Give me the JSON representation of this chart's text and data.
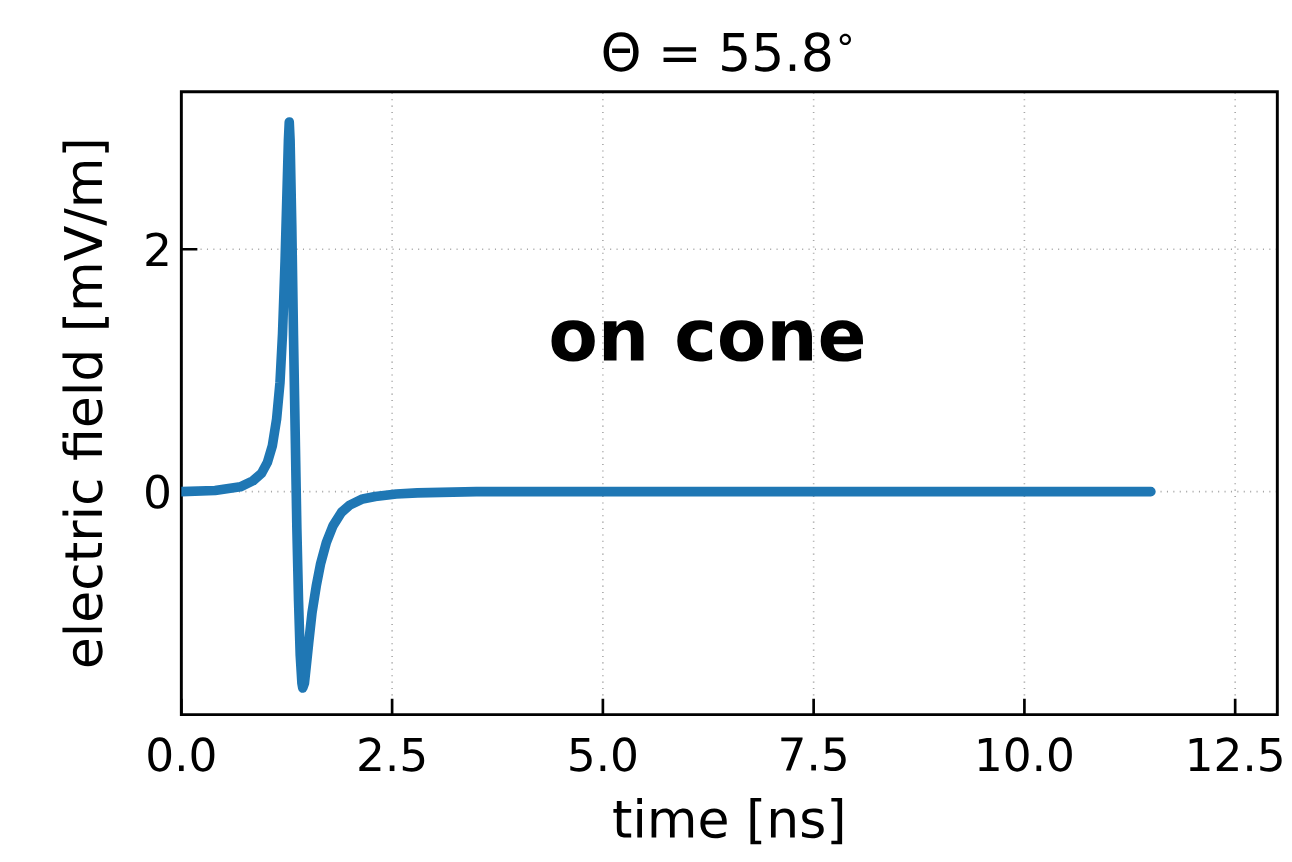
{
  "chart_data": {
    "type": "line",
    "title": "Θ = 55.8$^{∘}$",
    "xlabel": "time [ns]",
    "ylabel": "electric field [mV/m]",
    "annotations": [
      "on cone"
    ],
    "series": [
      {
        "color": "#1f77b4",
        "x": [
          0,
          0.4,
          0.7,
          0.85,
          0.95,
          1.02,
          1.08,
          1.13,
          1.17,
          1.2,
          1.23,
          1.25,
          1.27,
          1.28,
          1.29,
          1.31,
          1.33,
          1.35,
          1.37,
          1.39,
          1.41,
          1.43,
          1.44,
          1.46,
          1.48,
          1.51,
          1.55,
          1.6,
          1.65,
          1.72,
          1.8,
          1.9,
          2.0,
          2.15,
          2.3,
          2.55,
          2.8,
          3.5,
          11.5
        ],
        "values": [
          0,
          0.01,
          0.04,
          0.09,
          0.15,
          0.24,
          0.38,
          0.6,
          0.9,
          1.3,
          1.9,
          2.4,
          2.9,
          3.05,
          2.9,
          2.2,
          1.3,
          0.5,
          -0.3,
          -0.9,
          -1.35,
          -1.58,
          -1.62,
          -1.58,
          -1.45,
          -1.25,
          -1.0,
          -0.78,
          -0.6,
          -0.42,
          -0.28,
          -0.17,
          -0.11,
          -0.06,
          -0.04,
          -0.02,
          -0.01,
          0,
          0
        ]
      }
    ],
    "xlim": [
      0,
      13
    ],
    "ylim": [
      -1.84,
      3.3
    ],
    "xticks": [
      {
        "value": 0,
        "label": "0.0"
      },
      {
        "value": 2.5,
        "label": "2.5"
      },
      {
        "value": 5,
        "label": "5.0"
      },
      {
        "value": 7.5,
        "label": "7.5"
      },
      {
        "value": 10,
        "label": "10.0"
      },
      {
        "value": 12.5,
        "label": "12.5"
      }
    ],
    "yticks": [
      0,
      2
    ],
    "grid": true,
    "marker": "none",
    "line_style": "solid"
  }
}
